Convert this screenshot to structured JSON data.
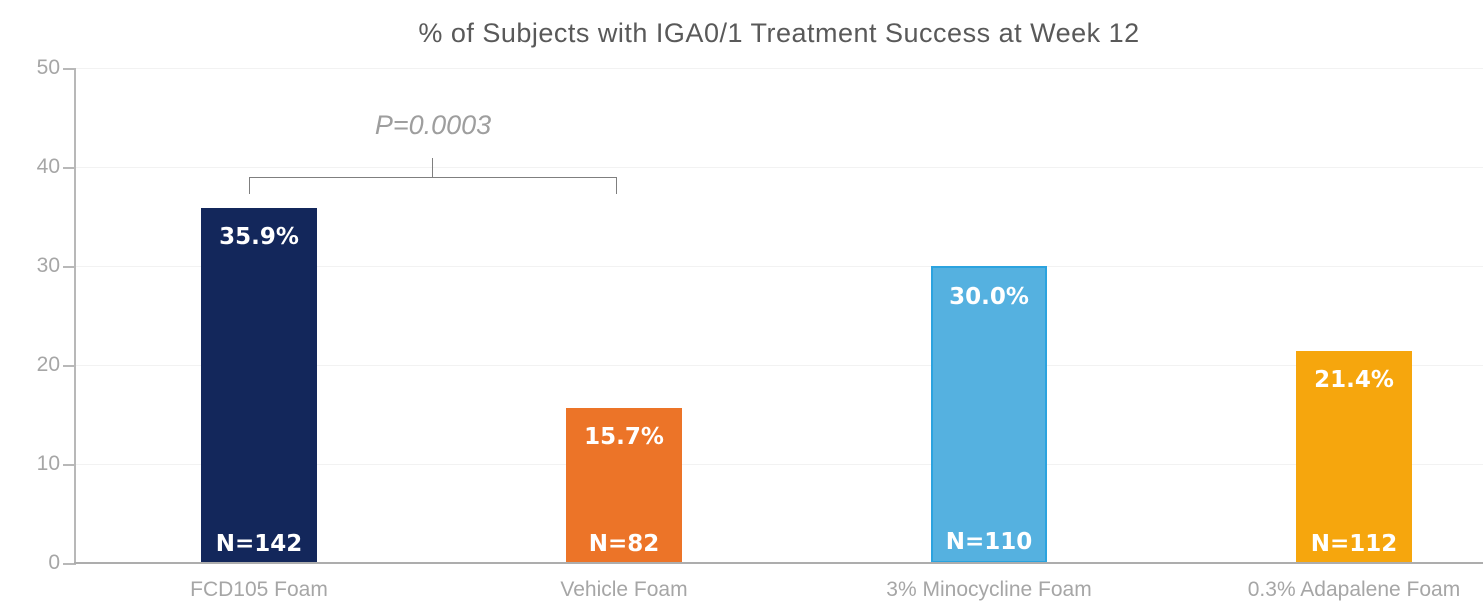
{
  "chart_data": {
    "type": "bar",
    "title": "% of Subjects with IGA0/1 Treatment Success at Week 12",
    "categories": [
      "FCD105 Foam",
      "Vehicle Foam",
      "3% Minocycline Foam",
      "0.3% Adapalene Foam"
    ],
    "values": [
      35.9,
      15.7,
      30.0,
      21.4
    ],
    "value_labels": [
      "35.9%",
      "15.7%",
      "30.0%",
      "21.4%"
    ],
    "n_labels": [
      "N=142",
      "N=82",
      "N=110",
      "N=112"
    ],
    "bar_colors": [
      "#13275b",
      "#ec7428",
      "#55b1e0",
      "#f6a60d"
    ],
    "bar_border_colors": [
      "#13275b",
      "#ec7428",
      "#2ba3df",
      "#f6a60d"
    ],
    "xlabel": "",
    "ylabel": "",
    "ylim": [
      0,
      50
    ],
    "yticks": [
      0,
      10,
      20,
      30,
      40,
      50
    ],
    "grid": "horizontal",
    "legend": "none",
    "annotation": {
      "text": "P=0.0003",
      "connects": [
        "FCD105 Foam",
        "Vehicle Foam"
      ]
    }
  }
}
